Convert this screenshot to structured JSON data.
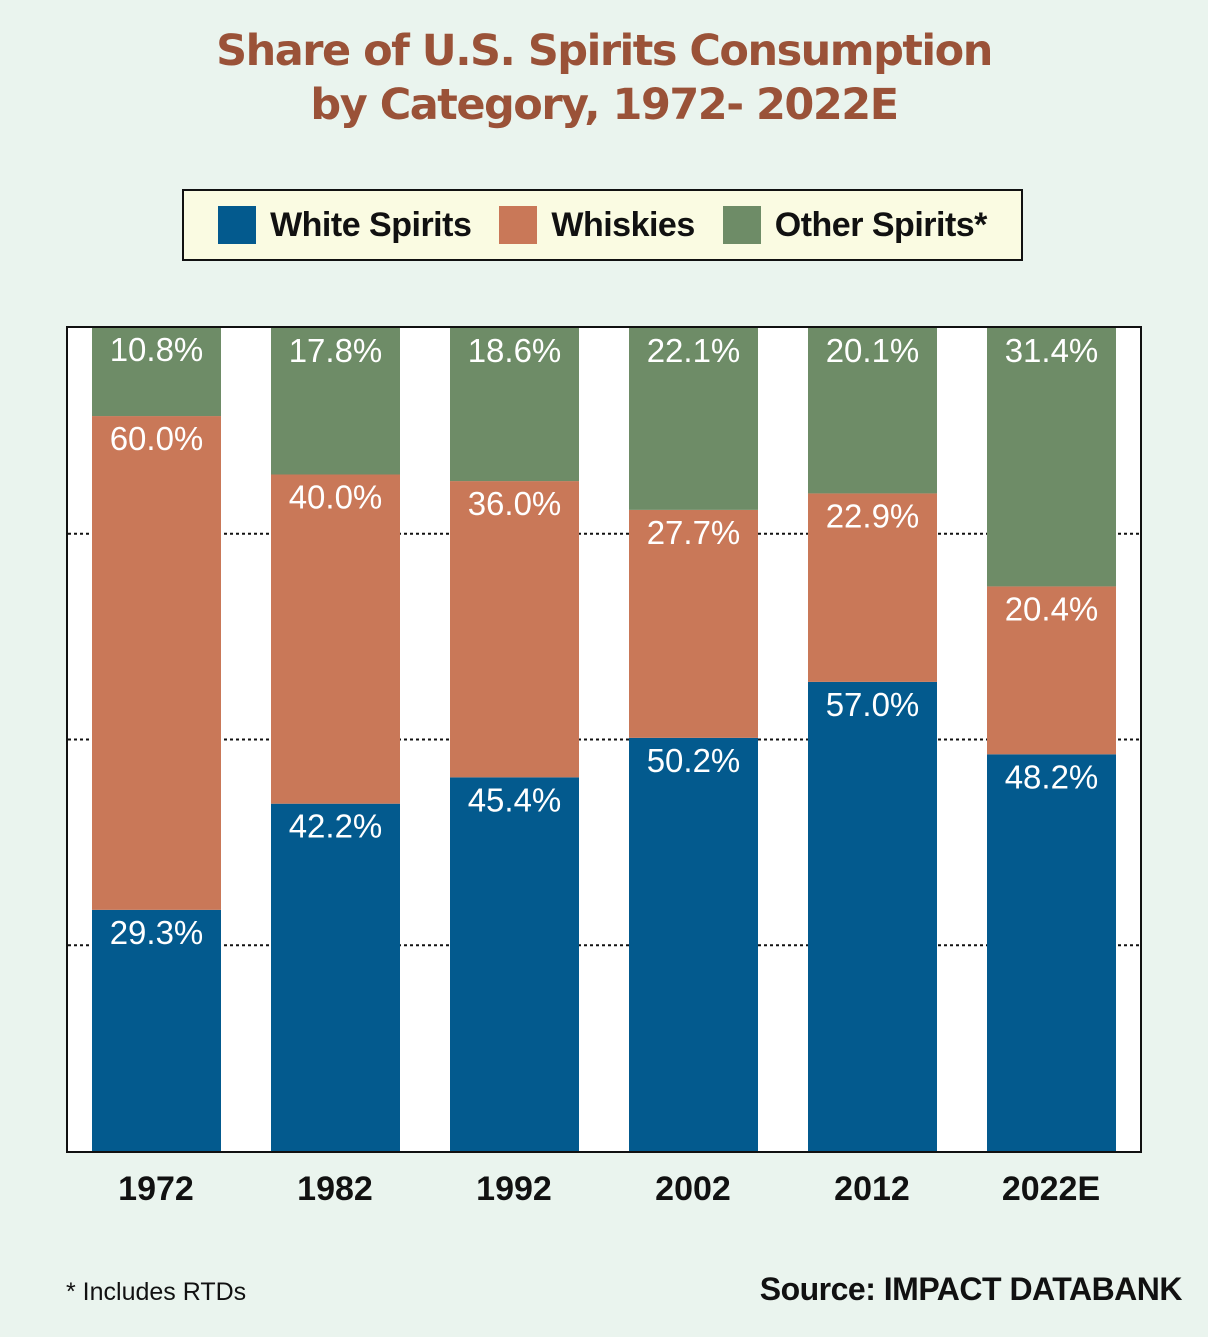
{
  "chart_data": {
    "type": "bar",
    "stacked": true,
    "title_line1": "Share of U.S. Spirits Consumption",
    "title_line2": "by Category, 1972- 2022E",
    "categories": [
      "1972",
      "1982",
      "1992",
      "2002",
      "2012",
      "2022E"
    ],
    "series": [
      {
        "name": "White Spirits",
        "color": "#035a8e",
        "values": [
          29.3,
          42.2,
          45.4,
          50.2,
          57.0,
          48.2
        ],
        "labels": [
          "29.3%",
          "42.2%",
          "45.4%",
          "50.2%",
          "57.0%",
          "48.2%"
        ]
      },
      {
        "name": "Whiskies",
        "color": "#c97858",
        "values": [
          60.0,
          40.0,
          36.0,
          27.7,
          22.9,
          20.4
        ],
        "labels": [
          "60.0%",
          "40.0%",
          "36.0%",
          "27.7%",
          "22.9%",
          "20.4%"
        ]
      },
      {
        "name": "Other Spirits*",
        "color": "#6e8c67",
        "values": [
          10.8,
          17.8,
          18.6,
          22.1,
          20.1,
          31.4
        ],
        "labels": [
          "10.8%",
          "17.8%",
          "18.6%",
          "22.1%",
          "20.1%",
          "31.4%"
        ]
      }
    ],
    "ylim": [
      0,
      100
    ],
    "gridlines": [
      25,
      50,
      75
    ],
    "grid_style": "dotted",
    "legend_position": "top",
    "footnote": "* Includes RTDs",
    "source": "Source: IMPACT DATABANK"
  }
}
